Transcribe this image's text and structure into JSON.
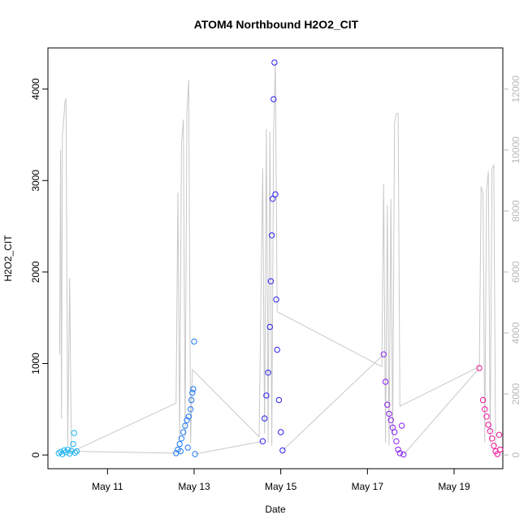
{
  "chart_data": {
    "type": "scatter",
    "title": "ATOM4 Northbound H2O2_CIT",
    "xlabel": "Date",
    "ylabel": "H2O2_CIT",
    "x_ticks": [
      "May 11",
      "May 13",
      "May 15",
      "May 17",
      "May 19"
    ],
    "xlim": [
      "2016-05-09T15:00",
      "2016-05-20T03:00"
    ],
    "ylim": [
      -150,
      4450
    ],
    "y_ticks": [
      0,
      1000,
      2000,
      3000,
      4000
    ],
    "y2lim": [
      -450,
      13350
    ],
    "y2_ticks": [
      0,
      2000,
      4000,
      6000,
      8000,
      10000,
      12000
    ],
    "grid": false,
    "legend": "none",
    "colors": {
      "line": "#c8c8c8",
      "points": [
        "#1fb4ef",
        "#1e78f5",
        "#2a1ff0",
        "#8a1ff0",
        "#f0169e"
      ],
      "right_axis": "#b8b8b8"
    },
    "series": [
      {
        "values": [
          {
            "x": "2016-05-09T21:00",
            "y": 20
          },
          {
            "x": "2016-05-09T22:00",
            "y": 35
          },
          {
            "x": "2016-05-09T23:00",
            "y": 10
          },
          {
            "x": "2016-05-10T00:00",
            "y": 50
          },
          {
            "x": "2016-05-10T01:00",
            "y": 30
          },
          {
            "x": "2016-05-10T02:00",
            "y": 60
          },
          {
            "x": "2016-05-10T03:00",
            "y": 15
          },
          {
            "x": "2016-05-10T04:00",
            "y": 45
          },
          {
            "x": "2016-05-10T05:00",
            "y": 120
          },
          {
            "x": "2016-05-10T05:30",
            "y": 240
          },
          {
            "x": "2016-05-10T06:00",
            "y": 25
          },
          {
            "x": "2016-05-10T07:00",
            "y": 40
          }
        ]
      },
      {
        "values": [
          {
            "x": "2016-05-12T14:00",
            "y": 20
          },
          {
            "x": "2016-05-12T15:00",
            "y": 60
          },
          {
            "x": "2016-05-12T16:00",
            "y": 120
          },
          {
            "x": "2016-05-12T17:00",
            "y": 180
          },
          {
            "x": "2016-05-12T18:00",
            "y": 250
          },
          {
            "x": "2016-05-12T19:00",
            "y": 320
          },
          {
            "x": "2016-05-12T20:00",
            "y": 380
          },
          {
            "x": "2016-05-12T21:00",
            "y": 420
          },
          {
            "x": "2016-05-12T22:00",
            "y": 500
          },
          {
            "x": "2016-05-12T22:30",
            "y": 600
          },
          {
            "x": "2016-05-12T23:00",
            "y": 680
          },
          {
            "x": "2016-05-12T23:30",
            "y": 720
          },
          {
            "x": "2016-05-13T00:00",
            "y": 1240
          },
          {
            "x": "2016-05-12T16:30",
            "y": 40
          },
          {
            "x": "2016-05-12T20:30",
            "y": 80
          },
          {
            "x": "2016-05-13T00:30",
            "y": 10
          }
        ]
      },
      {
        "values": [
          {
            "x": "2016-05-14T14:00",
            "y": 150
          },
          {
            "x": "2016-05-14T15:00",
            "y": 400
          },
          {
            "x": "2016-05-14T16:00",
            "y": 650
          },
          {
            "x": "2016-05-14T17:00",
            "y": 900
          },
          {
            "x": "2016-05-14T18:00",
            "y": 1400
          },
          {
            "x": "2016-05-14T18:30",
            "y": 1900
          },
          {
            "x": "2016-05-14T19:00",
            "y": 2400
          },
          {
            "x": "2016-05-14T19:30",
            "y": 2800
          },
          {
            "x": "2016-05-14T20:00",
            "y": 3890
          },
          {
            "x": "2016-05-14T20:30",
            "y": 4290
          },
          {
            "x": "2016-05-14T21:00",
            "y": 2850
          },
          {
            "x": "2016-05-14T21:30",
            "y": 1700
          },
          {
            "x": "2016-05-14T22:00",
            "y": 1150
          },
          {
            "x": "2016-05-14T23:00",
            "y": 600
          },
          {
            "x": "2016-05-15T00:00",
            "y": 250
          },
          {
            "x": "2016-05-15T01:00",
            "y": 50
          }
        ]
      },
      {
        "values": [
          {
            "x": "2016-05-17T09:00",
            "y": 1100
          },
          {
            "x": "2016-05-17T10:00",
            "y": 800
          },
          {
            "x": "2016-05-17T11:00",
            "y": 550
          },
          {
            "x": "2016-05-17T12:00",
            "y": 450
          },
          {
            "x": "2016-05-17T13:00",
            "y": 380
          },
          {
            "x": "2016-05-17T14:00",
            "y": 300
          },
          {
            "x": "2016-05-17T15:00",
            "y": 250
          },
          {
            "x": "2016-05-17T16:00",
            "y": 150
          },
          {
            "x": "2016-05-17T17:00",
            "y": 60
          },
          {
            "x": "2016-05-17T18:00",
            "y": 20
          },
          {
            "x": "2016-05-17T19:00",
            "y": 320
          },
          {
            "x": "2016-05-17T20:00",
            "y": 5
          }
        ]
      },
      {
        "values": [
          {
            "x": "2016-05-19T14:00",
            "y": 950
          },
          {
            "x": "2016-05-19T16:00",
            "y": 600
          },
          {
            "x": "2016-05-19T17:00",
            "y": 500
          },
          {
            "x": "2016-05-19T18:00",
            "y": 420
          },
          {
            "x": "2016-05-19T19:00",
            "y": 330
          },
          {
            "x": "2016-05-19T20:00",
            "y": 260
          },
          {
            "x": "2016-05-19T21:00",
            "y": 180
          },
          {
            "x": "2016-05-19T22:00",
            "y": 100
          },
          {
            "x": "2016-05-19T23:00",
            "y": 40
          },
          {
            "x": "2016-05-20T00:00",
            "y": 10
          },
          {
            "x": "2016-05-20T01:00",
            "y": 220
          },
          {
            "x": "2016-05-20T01:30",
            "y": 60
          }
        ]
      },
      {
        "axis": "right",
        "values": [
          {
            "x": "2016-05-09T21:30",
            "y": 3300
          },
          {
            "x": "2016-05-09T22:00",
            "y": 10000
          },
          {
            "x": "2016-05-09T22:30",
            "y": 1200
          },
          {
            "x": "2016-05-09T23:00",
            "y": 10500
          },
          {
            "x": "2016-05-10T00:00",
            "y": 11200
          },
          {
            "x": "2016-05-10T00:30",
            "y": 11600
          },
          {
            "x": "2016-05-10T01:00",
            "y": 11700
          },
          {
            "x": "2016-05-10T02:00",
            "y": 300
          },
          {
            "x": "2016-05-10T03:00",
            "y": 5800
          },
          {
            "x": "2016-05-10T04:00",
            "y": 100
          },
          {
            "x": "2016-05-12T14:00",
            "y": 1700
          },
          {
            "x": "2016-05-12T15:00",
            "y": 8600
          },
          {
            "x": "2016-05-12T16:00",
            "y": 500
          },
          {
            "x": "2016-05-12T17:00",
            "y": 10200
          },
          {
            "x": "2016-05-12T18:00",
            "y": 11000
          },
          {
            "x": "2016-05-12T19:00",
            "y": 600
          },
          {
            "x": "2016-05-12T20:00",
            "y": 11200
          },
          {
            "x": "2016-05-12T21:00",
            "y": 12300
          },
          {
            "x": "2016-05-12T22:00",
            "y": 400
          },
          {
            "x": "2016-05-12T23:00",
            "y": 2800
          },
          {
            "x": "2016-05-14T12:00",
            "y": 600
          },
          {
            "x": "2016-05-14T14:00",
            "y": 9400
          },
          {
            "x": "2016-05-14T15:00",
            "y": 700
          },
          {
            "x": "2016-05-14T16:00",
            "y": 10700
          },
          {
            "x": "2016-05-14T17:00",
            "y": 400
          },
          {
            "x": "2016-05-14T18:00",
            "y": 10600
          },
          {
            "x": "2016-05-14T19:00",
            "y": 300
          },
          {
            "x": "2016-05-14T20:00",
            "y": 10500
          },
          {
            "x": "2016-05-14T21:00",
            "y": 12900
          },
          {
            "x": "2016-05-14T22:00",
            "y": 4700
          },
          {
            "x": "2016-05-17T08:00",
            "y": 2900
          },
          {
            "x": "2016-05-17T09:00",
            "y": 8900
          },
          {
            "x": "2016-05-17T10:00",
            "y": 400
          },
          {
            "x": "2016-05-17T11:00",
            "y": 8200
          },
          {
            "x": "2016-05-17T12:00",
            "y": 300
          },
          {
            "x": "2016-05-17T13:00",
            "y": 8400
          },
          {
            "x": "2016-05-17T14:00",
            "y": 500
          },
          {
            "x": "2016-05-17T15:00",
            "y": 10900
          },
          {
            "x": "2016-05-17T16:00",
            "y": 11200
          },
          {
            "x": "2016-05-17T17:00",
            "y": 11200
          },
          {
            "x": "2016-05-17T18:00",
            "y": 1600
          },
          {
            "x": "2016-05-19T14:00",
            "y": 2900
          },
          {
            "x": "2016-05-19T15:00",
            "y": 8800
          },
          {
            "x": "2016-05-19T16:00",
            "y": 8600
          },
          {
            "x": "2016-05-19T17:00",
            "y": 400
          },
          {
            "x": "2016-05-19T18:00",
            "y": 8700
          },
          {
            "x": "2016-05-19T19:00",
            "y": 9300
          },
          {
            "x": "2016-05-19T20:00",
            "y": 400
          },
          {
            "x": "2016-05-19T21:00",
            "y": 9400
          },
          {
            "x": "2016-05-19T22:00",
            "y": 9500
          },
          {
            "x": "2016-05-19T23:00",
            "y": 300
          }
        ]
      }
    ]
  }
}
